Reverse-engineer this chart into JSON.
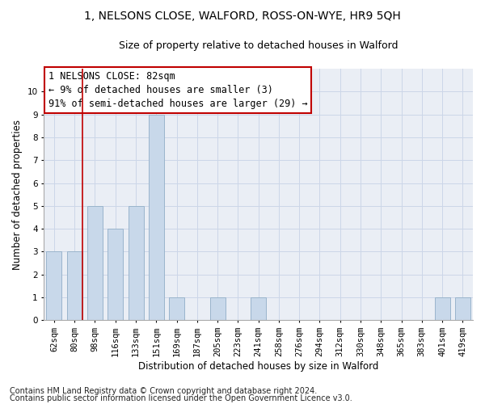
{
  "title_line1": "1, NELSONS CLOSE, WALFORD, ROSS-ON-WYE, HR9 5QH",
  "title_line2": "Size of property relative to detached houses in Walford",
  "xlabel": "Distribution of detached houses by size in Walford",
  "ylabel": "Number of detached properties",
  "footnote1": "Contains HM Land Registry data © Crown copyright and database right 2024.",
  "footnote2": "Contains public sector information licensed under the Open Government Licence v3.0.",
  "annotation_line1": "1 NELSONS CLOSE: 82sqm",
  "annotation_line2": "← 9% of detached houses are smaller (3)",
  "annotation_line3": "91% of semi-detached houses are larger (29) →",
  "categories": [
    "62sqm",
    "80sqm",
    "98sqm",
    "116sqm",
    "133sqm",
    "151sqm",
    "169sqm",
    "187sqm",
    "205sqm",
    "223sqm",
    "241sqm",
    "258sqm",
    "276sqm",
    "294sqm",
    "312sqm",
    "330sqm",
    "348sqm",
    "365sqm",
    "383sqm",
    "401sqm",
    "419sqm"
  ],
  "values": [
    3,
    3,
    5,
    4,
    5,
    9,
    1,
    0,
    1,
    0,
    1,
    0,
    0,
    0,
    0,
    0,
    0,
    0,
    0,
    1,
    1
  ],
  "bar_color": "#c8d8ea",
  "bar_edge_color": "#9ab4cc",
  "highlight_color": "#c00000",
  "highlight_index": 1,
  "ylim": [
    0,
    11
  ],
  "yticks": [
    0,
    1,
    2,
    3,
    4,
    5,
    6,
    7,
    8,
    9,
    10
  ],
  "grid_color": "#ccd6e8",
  "background_color": "#eaeef5",
  "title_fontsize": 10,
  "subtitle_fontsize": 9,
  "axis_label_fontsize": 8.5,
  "tick_fontsize": 7.5,
  "footnote_fontsize": 7,
  "annotation_fontsize": 8.5
}
